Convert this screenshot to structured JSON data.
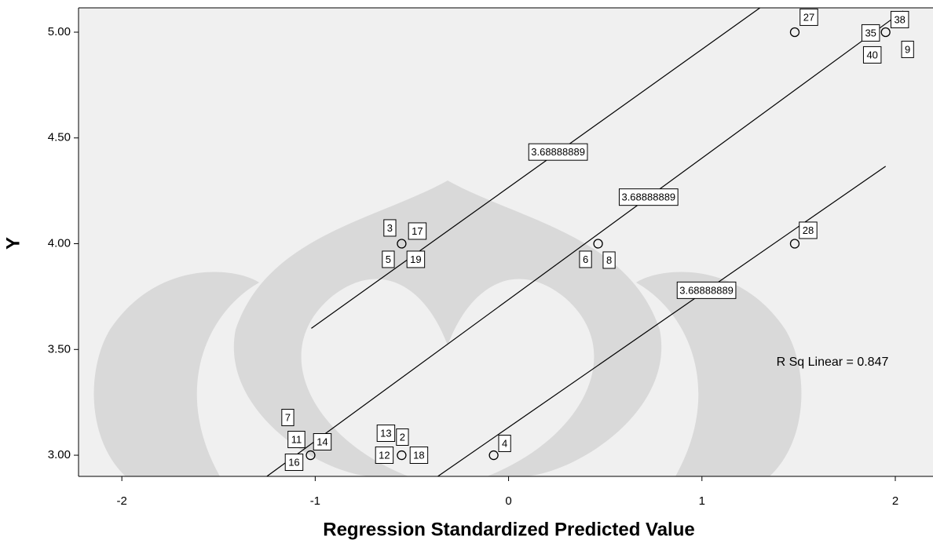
{
  "chart_data": {
    "type": "scatter",
    "x_label": "Regression Standardized Predicted Value",
    "y_label": "Y",
    "annotation": "R Sq Linear = 0.847",
    "xlim": [
      -2.224,
      2.195
    ],
    "ylim": [
      2.9,
      5.115
    ],
    "xticks": [
      -2,
      -1,
      0,
      1,
      2
    ],
    "yticks": [
      {
        "value": 3,
        "label": "3.00"
      },
      {
        "value": 3.5,
        "label": "3.50"
      },
      {
        "value": 4,
        "label": "4.00"
      },
      {
        "value": 4.5,
        "label": "4.50"
      },
      {
        "value": 5,
        "label": "5.00"
      }
    ],
    "series": [
      {
        "x": [
          1.48,
          1.95,
          -0.553,
          0.463,
          1.48,
          -1.024,
          -0.553,
          -0.077
        ],
        "values": [
          5,
          5,
          4,
          4,
          4,
          3,
          3,
          3
        ],
        "case_labels": [
          [
            "27"
          ],
          [
            "38",
            "35",
            "40",
            "9"
          ],
          [
            "3",
            "17",
            "5",
            "19"
          ],
          [
            "6",
            "8"
          ],
          [
            "28"
          ],
          [
            "7",
            "11",
            "14",
            "16"
          ],
          [
            "13",
            "2",
            "12",
            "18"
          ],
          [
            "4"
          ]
        ]
      }
    ],
    "fit_lines": [
      {
        "x": [
          -1.02,
          1.3
        ],
        "values": [
          3.6,
          5.115
        ],
        "label": "3.68888889"
      },
      {
        "x": [
          -1.25,
          2.04
        ],
        "values": [
          2.9,
          5.1
        ],
        "label": "3.68888889"
      },
      {
        "x": [
          -0.366,
          1.95
        ],
        "values": [
          2.9,
          4.366
        ],
        "label": "3.68888889"
      }
    ]
  }
}
